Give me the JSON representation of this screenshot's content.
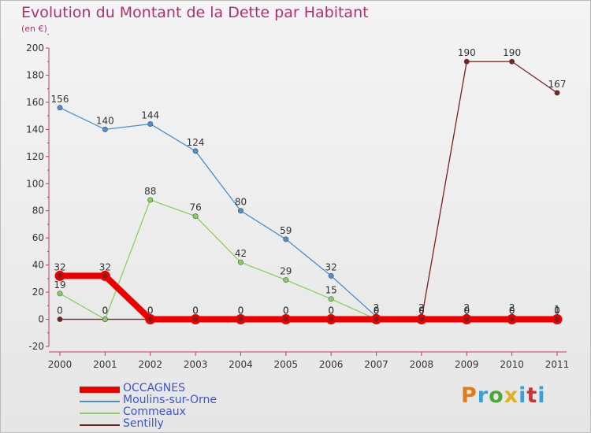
{
  "title": "Evolution du Montant de la Dette par Habitant",
  "unit": "(en €)",
  "logo": {
    "text": "Proxiti",
    "colors": [
      "#e07a1a",
      "#3aa0d8",
      "#4aa83a",
      "#e0b020",
      "#3aa0d8",
      "#d03030",
      "#3aa0d8"
    ]
  },
  "chart_data": {
    "type": "line",
    "title": "Evolution du Montant de la Dette par Habitant",
    "ylabel": "(en €)",
    "xlabel": "",
    "x": [
      "2000",
      "2001",
      "2002",
      "2003",
      "2004",
      "2005",
      "2006",
      "2007",
      "2008",
      "2009",
      "2010",
      "2011"
    ],
    "ylim": [
      -20,
      200
    ],
    "yticks": [
      -20,
      0,
      20,
      40,
      60,
      80,
      100,
      120,
      140,
      160,
      180,
      200
    ],
    "grid": false,
    "legend_position": "bottom-left",
    "series": [
      {
        "name": "Sentilly",
        "color": "#7a2020",
        "values": [
          0,
          0,
          0,
          0,
          0,
          0,
          0,
          0,
          0,
          190,
          190,
          167
        ],
        "labels": [
          "0",
          "0",
          "0",
          "0",
          "0",
          "0",
          "0",
          "0",
          "0",
          "190",
          "190",
          "167"
        ]
      },
      {
        "name": "Moulins-sur-Orne",
        "color": "#4a8fd0",
        "values": [
          156,
          140,
          144,
          124,
          80,
          59,
          32,
          2,
          2,
          2,
          2,
          1
        ],
        "labels": [
          "156",
          "140",
          "144",
          "124",
          "80",
          "59",
          "32",
          "2",
          "2",
          "2",
          "2",
          "1"
        ]
      },
      {
        "name": "Commeaux",
        "color": "#88d060",
        "values": [
          19,
          0,
          88,
          76,
          42,
          29,
          15,
          0,
          0,
          0,
          0,
          0
        ],
        "labels": [
          "19",
          "0",
          "88",
          "76",
          "42",
          "29",
          "15",
          "0",
          "0",
          "0",
          "0",
          "0"
        ]
      },
      {
        "name": "OCCAGNES",
        "color": "#ee0000",
        "values": [
          32,
          32,
          0,
          0,
          0,
          0,
          0,
          0,
          0,
          0,
          0,
          0
        ],
        "labels": [
          "32",
          "32",
          "0",
          "0",
          "0",
          "0",
          "0",
          "0",
          "0",
          "0",
          "0",
          "0"
        ]
      }
    ],
    "legend": [
      "OCCAGNES",
      "Moulins-sur-Orne",
      "Commeaux",
      "Sentilly"
    ]
  }
}
